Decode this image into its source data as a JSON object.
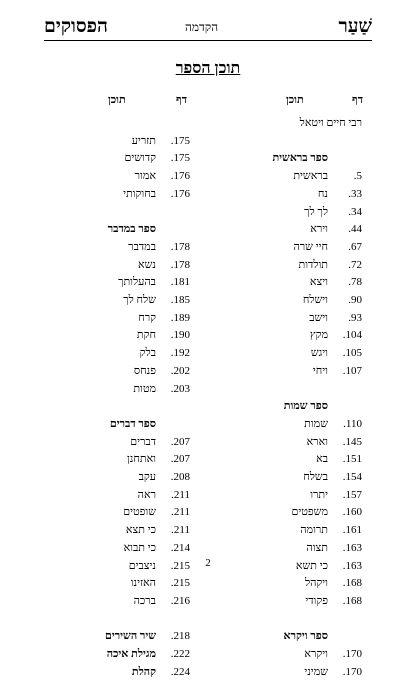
{
  "header": {
    "left": "הפסוקים",
    "center": "הקדמה",
    "right": "שַׁעַר"
  },
  "title": "תוכן הספר",
  "column_headers": {
    "right": {
      "page": "דף",
      "content": "תוכן"
    },
    "left": {
      "page": "דף",
      "content": "תוכן"
    }
  },
  "right_column": [
    {
      "type": "wide",
      "name": "רבי חיים ויטאל",
      "page": ""
    },
    {
      "type": "gap"
    },
    {
      "type": "head",
      "name": "ספר בראשית",
      "page": ""
    },
    {
      "name": "בראשית",
      "page": "5."
    },
    {
      "name": "נח",
      "page": "33."
    },
    {
      "name": "לך לך",
      "page": "34."
    },
    {
      "name": "וירא",
      "page": "44."
    },
    {
      "name": "חיי שרה",
      "page": "67."
    },
    {
      "name": "תולדות",
      "page": "72."
    },
    {
      "name": "ויצא",
      "page": "78."
    },
    {
      "name": "וישלח",
      "page": "90."
    },
    {
      "name": "וישב",
      "page": "93."
    },
    {
      "name": "מקץ",
      "page": "104."
    },
    {
      "name": "ויגש",
      "page": "105."
    },
    {
      "name": "ויחי",
      "page": "107."
    },
    {
      "type": "gap"
    },
    {
      "type": "head",
      "name": "ספר שמות",
      "page": ""
    },
    {
      "name": "שמות",
      "page": "110."
    },
    {
      "name": "וארא",
      "page": "145."
    },
    {
      "name": "בא",
      "page": "151."
    },
    {
      "name": "בשלח",
      "page": "154."
    },
    {
      "name": "יתרו",
      "page": "157."
    },
    {
      "name": "משפטים",
      "page": "160."
    },
    {
      "name": "תרומה",
      "page": "161."
    },
    {
      "name": "תצוה",
      "page": "163."
    },
    {
      "name": "כי תשא",
      "page": "163."
    },
    {
      "name": "ויקהל",
      "page": "168."
    },
    {
      "name": "פקודי",
      "page": "168."
    },
    {
      "type": "gap"
    },
    {
      "type": "head",
      "name": "ספר ויקרא",
      "page": ""
    },
    {
      "name": "ויקרא",
      "page": "170."
    },
    {
      "name": "שמיני",
      "page": "170."
    }
  ],
  "left_column": [
    {
      "type": "gap"
    },
    {
      "name": "תזריע",
      "page": "175."
    },
    {
      "name": "קדושים",
      "page": "175."
    },
    {
      "name": "אמור",
      "page": "176."
    },
    {
      "name": "בחוקותי",
      "page": "176."
    },
    {
      "type": "gap"
    },
    {
      "type": "head",
      "name": "ספר במדבר",
      "page": ""
    },
    {
      "name": "במדבר",
      "page": "178."
    },
    {
      "name": "נשא",
      "page": "178."
    },
    {
      "name": "בהעלותך",
      "page": "181."
    },
    {
      "name": "שלח לך",
      "page": "185."
    },
    {
      "name": "קרח",
      "page": "189."
    },
    {
      "name": "חקת",
      "page": "190."
    },
    {
      "name": "בלק",
      "page": "192."
    },
    {
      "name": "פנחס",
      "page": "202."
    },
    {
      "name": "מטות",
      "page": "203."
    },
    {
      "type": "gap"
    },
    {
      "type": "head",
      "name": "ספר דברים",
      "page": ""
    },
    {
      "name": "דברים",
      "page": "207."
    },
    {
      "name": "ואתחנן",
      "page": "207."
    },
    {
      "name": "עקב",
      "page": "208."
    },
    {
      "name": "ראה",
      "page": "211."
    },
    {
      "name": "שופטים",
      "page": "211."
    },
    {
      "name": "כי תצא",
      "page": "211."
    },
    {
      "name": "כי תבוא",
      "page": "214."
    },
    {
      "name": "ניצבים",
      "page": "215."
    },
    {
      "name": "האזינו",
      "page": "215."
    },
    {
      "name": "ברכה",
      "page": "216."
    },
    {
      "type": "gap"
    },
    {
      "type": "head",
      "name": "שיר השירים",
      "page": "218."
    },
    {
      "type": "head",
      "name": "מגילת איכה",
      "page": "222."
    },
    {
      "type": "head",
      "name": "קהלת",
      "page": "224."
    }
  ],
  "page_number": "2"
}
